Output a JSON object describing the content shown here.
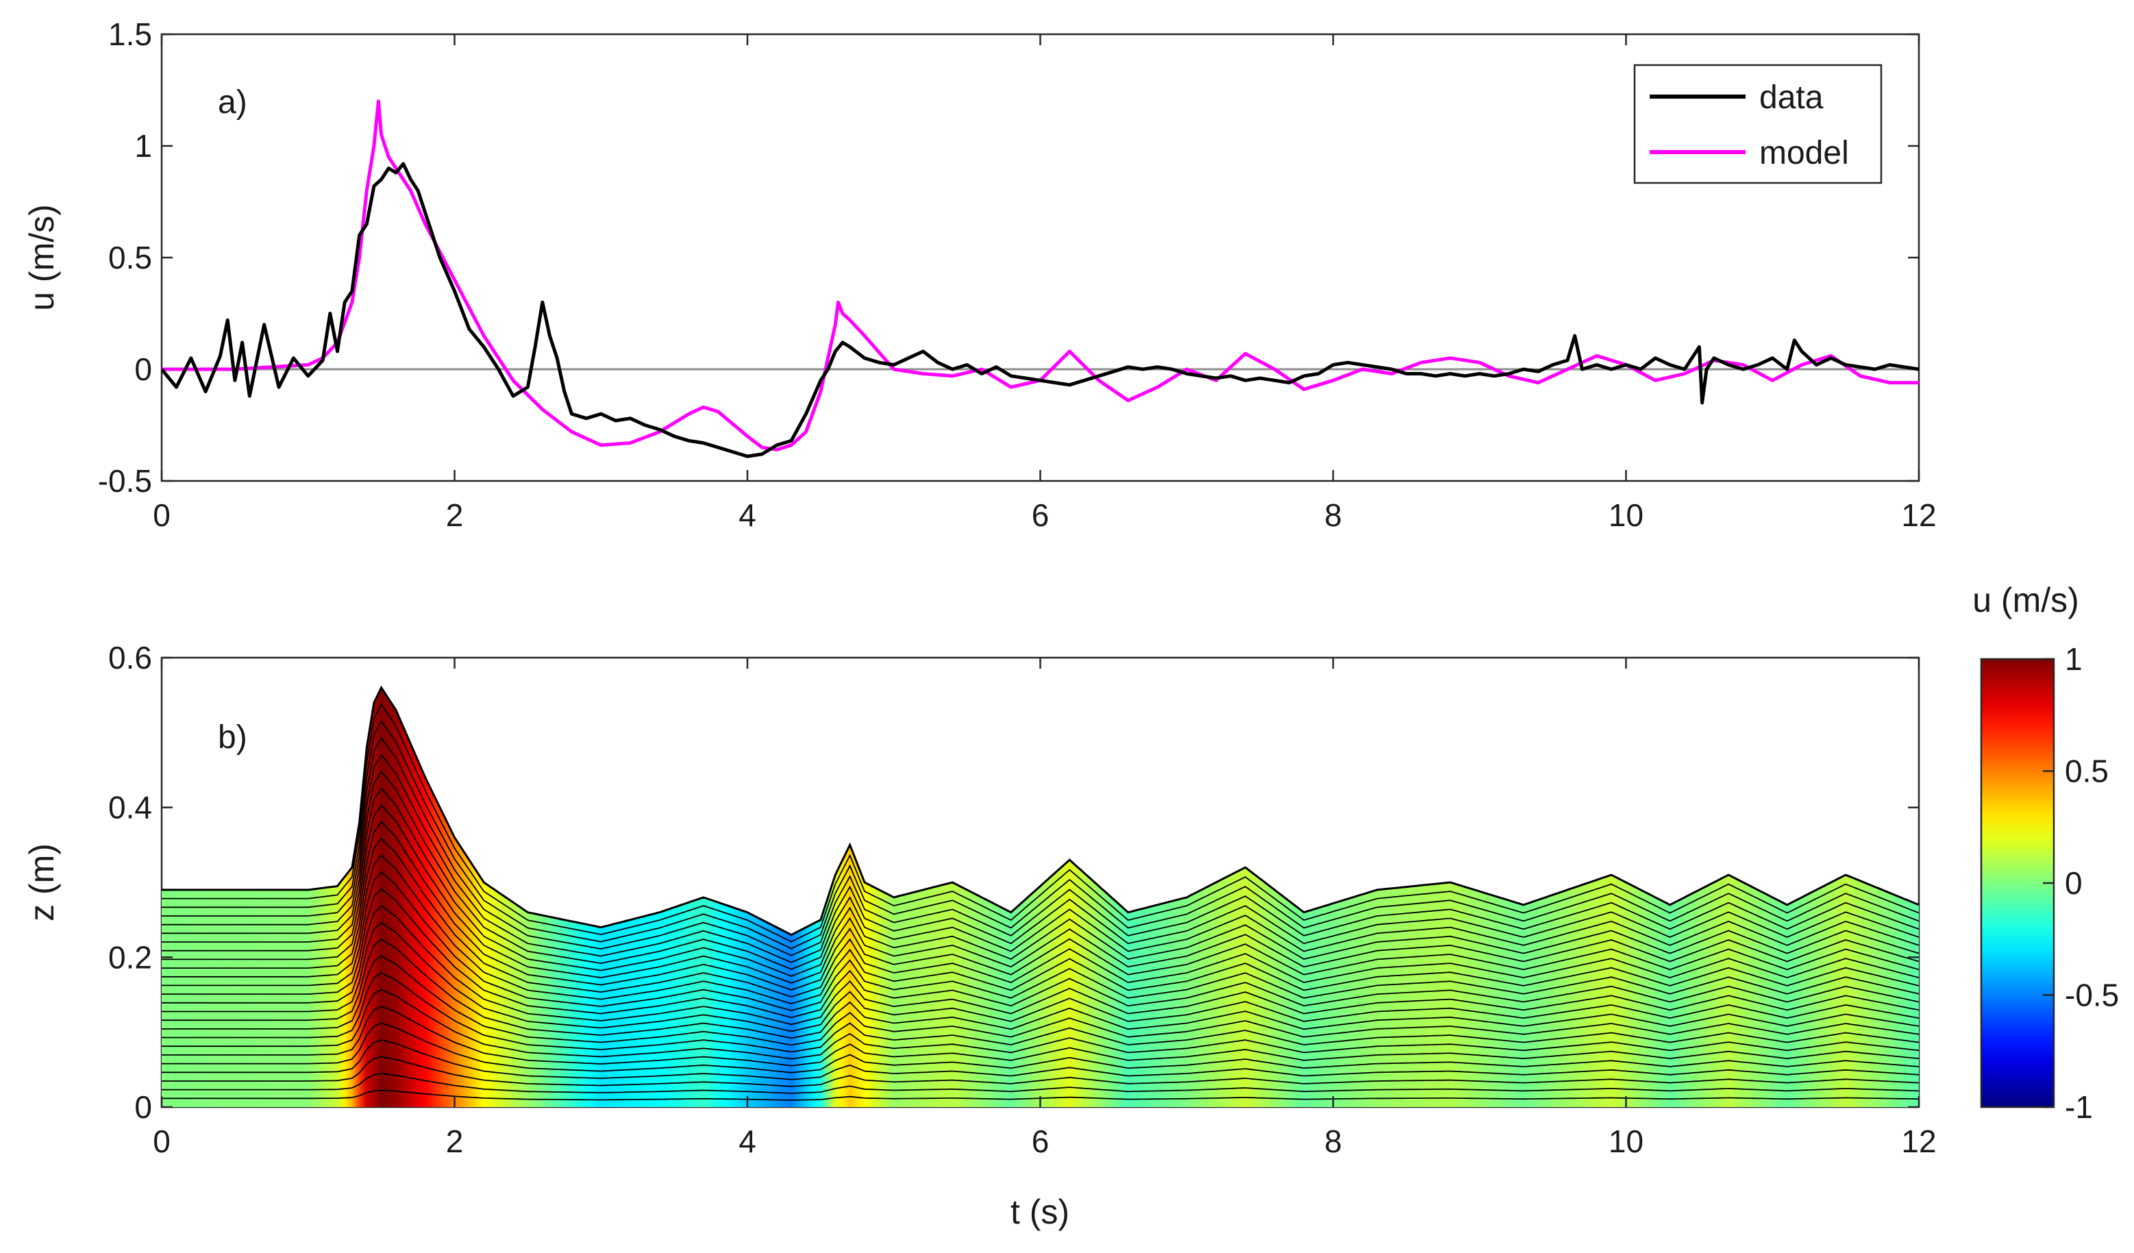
{
  "chart_data": [
    {
      "type": "line",
      "panel_label": "a)",
      "xlabel": "",
      "ylabel": "u (m/s)",
      "xlim": [
        0,
        12
      ],
      "ylim": [
        -0.5,
        1.5
      ],
      "xticks": [
        "0",
        "2",
        "4",
        "6",
        "8",
        "10",
        "12"
      ],
      "yticks": [
        "-0.5",
        "0",
        "0.5",
        "1",
        "1.5"
      ],
      "reference_line_y": 0,
      "legend": {
        "position": "top-right",
        "entries": [
          "data",
          "model"
        ]
      },
      "series": [
        {
          "name": "data",
          "color": "#000000",
          "x": [
            0,
            0.1,
            0.2,
            0.3,
            0.4,
            0.45,
            0.5,
            0.55,
            0.6,
            0.7,
            0.8,
            0.9,
            1.0,
            1.1,
            1.15,
            1.2,
            1.25,
            1.3,
            1.35,
            1.4,
            1.45,
            1.5,
            1.55,
            1.6,
            1.65,
            1.7,
            1.75,
            1.8,
            1.9,
            2.0,
            2.1,
            2.2,
            2.3,
            2.4,
            2.5,
            2.55,
            2.6,
            2.65,
            2.7,
            2.75,
            2.8,
            2.9,
            3.0,
            3.1,
            3.2,
            3.3,
            3.4,
            3.5,
            3.6,
            3.7,
            3.8,
            3.9,
            4.0,
            4.1,
            4.2,
            4.3,
            4.4,
            4.5,
            4.55,
            4.6,
            4.65,
            4.7,
            4.8,
            4.9,
            5.0,
            5.1,
            5.2,
            5.3,
            5.4,
            5.5,
            5.6,
            5.7,
            5.8,
            5.9,
            6.0,
            6.1,
            6.2,
            6.3,
            6.4,
            6.5,
            6.6,
            6.7,
            6.8,
            6.9,
            7.0,
            7.1,
            7.2,
            7.3,
            7.4,
            7.5,
            7.6,
            7.7,
            7.8,
            7.9,
            8.0,
            8.1,
            8.2,
            8.3,
            8.4,
            8.5,
            8.6,
            8.7,
            8.8,
            8.9,
            9.0,
            9.1,
            9.2,
            9.3,
            9.4,
            9.5,
            9.6,
            9.65,
            9.7,
            9.8,
            9.9,
            10.0,
            10.1,
            10.2,
            10.3,
            10.4,
            10.5,
            10.52,
            10.55,
            10.6,
            10.7,
            10.8,
            10.9,
            11.0,
            11.1,
            11.15,
            11.2,
            11.3,
            11.4,
            11.5,
            11.6,
            11.7,
            11.8,
            11.9,
            12.0
          ],
          "y": [
            0.0,
            -0.08,
            0.05,
            -0.1,
            0.06,
            0.22,
            -0.05,
            0.12,
            -0.12,
            0.2,
            -0.08,
            0.05,
            -0.03,
            0.04,
            0.25,
            0.08,
            0.3,
            0.35,
            0.6,
            0.65,
            0.82,
            0.85,
            0.9,
            0.88,
            0.92,
            0.85,
            0.8,
            0.7,
            0.5,
            0.35,
            0.18,
            0.1,
            0.0,
            -0.12,
            -0.08,
            0.1,
            0.3,
            0.15,
            0.05,
            -0.1,
            -0.2,
            -0.22,
            -0.2,
            -0.23,
            -0.22,
            -0.25,
            -0.27,
            -0.3,
            -0.32,
            -0.33,
            -0.35,
            -0.37,
            -0.39,
            -0.38,
            -0.34,
            -0.32,
            -0.2,
            -0.05,
            0.0,
            0.08,
            0.12,
            0.1,
            0.05,
            0.03,
            0.02,
            0.05,
            0.08,
            0.03,
            0.0,
            0.02,
            -0.02,
            0.01,
            -0.03,
            -0.04,
            -0.05,
            -0.06,
            -0.07,
            -0.05,
            -0.03,
            -0.01,
            0.01,
            0.0,
            0.01,
            0.0,
            -0.02,
            -0.03,
            -0.04,
            -0.03,
            -0.05,
            -0.04,
            -0.05,
            -0.06,
            -0.03,
            -0.02,
            0.02,
            0.03,
            0.02,
            0.01,
            0.0,
            -0.02,
            -0.02,
            -0.03,
            -0.02,
            -0.03,
            -0.02,
            -0.03,
            -0.02,
            0.0,
            -0.01,
            0.02,
            0.04,
            0.15,
            0.0,
            0.02,
            0.0,
            0.02,
            0.0,
            0.05,
            0.02,
            0.0,
            0.1,
            -0.15,
            0.0,
            0.05,
            0.02,
            0.0,
            0.02,
            0.05,
            0.0,
            0.13,
            0.08,
            0.02,
            0.05,
            0.02,
            0.01,
            0.0,
            0.02,
            0.01,
            0.0
          ]
        },
        {
          "name": "model",
          "color": "#ff00ff",
          "x": [
            0,
            0.5,
            1.0,
            1.1,
            1.2,
            1.3,
            1.35,
            1.4,
            1.45,
            1.48,
            1.5,
            1.55,
            1.6,
            1.7,
            1.8,
            2.0,
            2.2,
            2.4,
            2.6,
            2.8,
            3.0,
            3.2,
            3.4,
            3.6,
            3.7,
            3.8,
            4.0,
            4.1,
            4.2,
            4.3,
            4.4,
            4.5,
            4.55,
            4.6,
            4.62,
            4.65,
            4.7,
            4.8,
            5.0,
            5.2,
            5.4,
            5.6,
            5.8,
            6.0,
            6.2,
            6.4,
            6.6,
            6.8,
            7.0,
            7.2,
            7.4,
            7.6,
            7.8,
            8.0,
            8.2,
            8.4,
            8.6,
            8.8,
            9.0,
            9.2,
            9.4,
            9.6,
            9.8,
            10.0,
            10.2,
            10.4,
            10.6,
            10.8,
            11.0,
            11.2,
            11.4,
            11.6,
            11.8,
            12.0
          ],
          "y": [
            0.0,
            0.0,
            0.02,
            0.05,
            0.12,
            0.3,
            0.5,
            0.8,
            1.0,
            1.2,
            1.05,
            0.95,
            0.9,
            0.8,
            0.65,
            0.4,
            0.15,
            -0.05,
            -0.18,
            -0.28,
            -0.34,
            -0.33,
            -0.28,
            -0.2,
            -0.17,
            -0.19,
            -0.3,
            -0.35,
            -0.36,
            -0.34,
            -0.28,
            -0.1,
            0.05,
            0.2,
            0.3,
            0.25,
            0.22,
            0.15,
            0.0,
            -0.02,
            -0.03,
            0.0,
            -0.08,
            -0.05,
            0.08,
            -0.05,
            -0.14,
            -0.08,
            0.0,
            -0.05,
            0.07,
            0.0,
            -0.09,
            -0.05,
            0.0,
            -0.02,
            0.03,
            0.05,
            0.03,
            -0.03,
            -0.06,
            0.0,
            0.06,
            0.02,
            -0.05,
            -0.02,
            0.04,
            0.02,
            -0.05,
            0.02,
            0.06,
            -0.03,
            -0.06,
            -0.06
          ]
        }
      ]
    },
    {
      "type": "heatmap",
      "panel_label": "b)",
      "xlabel": "t (s)",
      "ylabel": "z (m)",
      "xlim": [
        0,
        12
      ],
      "ylim": [
        0,
        0.6
      ],
      "xticks": [
        "0",
        "2",
        "4",
        "6",
        "8",
        "10",
        "12"
      ],
      "yticks": [
        "0",
        "0.2",
        "0.4",
        "0.6"
      ],
      "description_series": "free-surface elevation with layered velocity contours",
      "surface": {
        "x": [
          0,
          1.0,
          1.2,
          1.3,
          1.35,
          1.4,
          1.45,
          1.5,
          1.6,
          1.8,
          2.0,
          2.2,
          2.5,
          3.0,
          3.4,
          3.7,
          4.0,
          4.3,
          4.5,
          4.6,
          4.7,
          4.8,
          5.0,
          5.4,
          5.8,
          6.2,
          6.6,
          7.0,
          7.4,
          7.8,
          8.3,
          8.8,
          9.3,
          9.9,
          10.3,
          10.7,
          11.1,
          11.5,
          12.0
        ],
        "eta": [
          0.29,
          0.29,
          0.295,
          0.32,
          0.38,
          0.48,
          0.54,
          0.56,
          0.53,
          0.44,
          0.36,
          0.3,
          0.26,
          0.24,
          0.26,
          0.28,
          0.26,
          0.23,
          0.25,
          0.31,
          0.35,
          0.3,
          0.28,
          0.3,
          0.26,
          0.33,
          0.26,
          0.28,
          0.32,
          0.26,
          0.29,
          0.3,
          0.27,
          0.31,
          0.27,
          0.31,
          0.27,
          0.31,
          0.27
        ]
      },
      "velocity": {
        "x": [
          0,
          1.0,
          1.2,
          1.3,
          1.4,
          1.5,
          1.6,
          1.8,
          2.0,
          2.2,
          2.5,
          3.0,
          3.4,
          3.7,
          4.0,
          4.3,
          4.5,
          4.6,
          4.7,
          4.8,
          5.0,
          5.4,
          5.8,
          6.2,
          6.6,
          7.0,
          7.4,
          7.8,
          8.3,
          8.8,
          9.3,
          9.9,
          10.3,
          10.7,
          11.1,
          11.5,
          12.0
        ],
        "u": [
          0.0,
          0.02,
          0.15,
          0.4,
          0.85,
          1.0,
          0.95,
          0.75,
          0.5,
          0.25,
          0.05,
          -0.3,
          -0.25,
          -0.15,
          -0.35,
          -0.5,
          -0.2,
          0.2,
          0.35,
          0.25,
          0.05,
          0.12,
          -0.05,
          0.2,
          -0.1,
          0.0,
          0.15,
          -0.05,
          0.05,
          0.1,
          -0.03,
          0.15,
          -0.05,
          0.12,
          -0.05,
          0.13,
          -0.08
        ]
      },
      "layers": 25,
      "colorbar": {
        "title": "u (m/s)",
        "range": [
          -1,
          1
        ],
        "ticks": [
          "1",
          "0.5",
          "0",
          "-0.5",
          "-1"
        ],
        "colormap": "jet"
      }
    }
  ]
}
